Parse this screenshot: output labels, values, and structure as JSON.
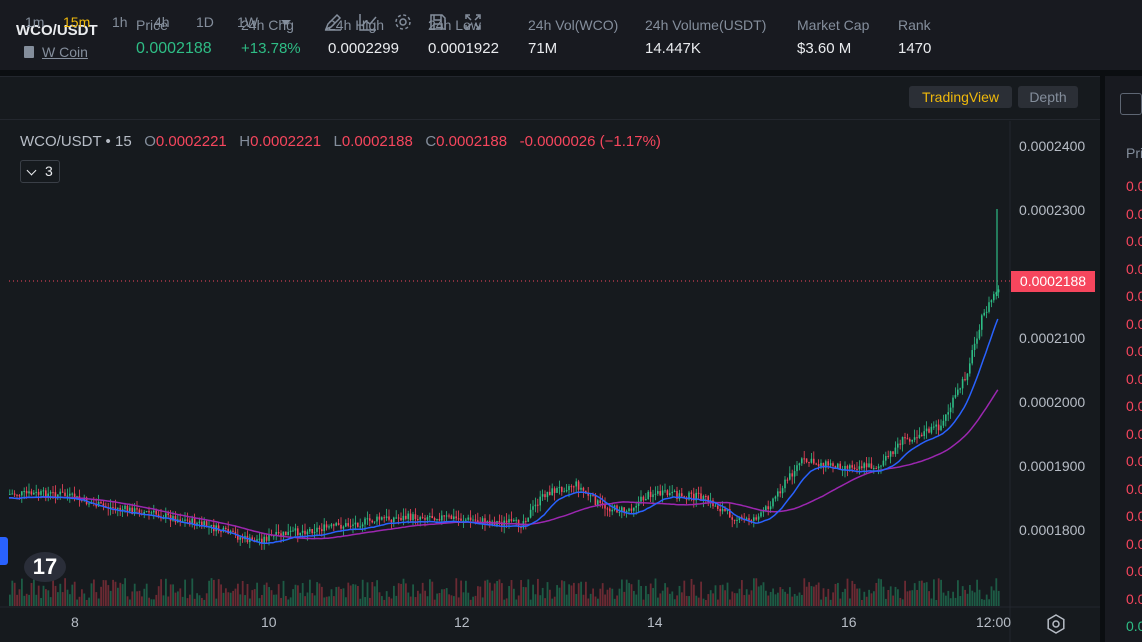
{
  "header": {
    "pair": "WCO/USDT",
    "coin_link": "W Coin",
    "stats": [
      {
        "label": "Price",
        "value": "0.0002188",
        "color": "green"
      },
      {
        "label": "24h Chg",
        "value": "+13.78%",
        "color": "green"
      },
      {
        "label": "24h High",
        "value": "0.0002299",
        "color": "white"
      },
      {
        "label": "24h Low",
        "value": "0.0001922",
        "color": "white"
      },
      {
        "label": "24h Vol(WCO)",
        "value": "71M",
        "color": "white"
      },
      {
        "label": "24h Volume(USDT)",
        "value": "14.447K",
        "color": "white"
      },
      {
        "label": "Market Cap",
        "value": "$3.60 M",
        "color": "white"
      },
      {
        "label": "Rank",
        "value": "1470",
        "color": "white"
      }
    ]
  },
  "toolbar": {
    "timeframes": [
      "1m",
      "15m",
      "1h",
      "4h",
      "1D",
      "1W"
    ],
    "active_timeframe": "15m",
    "tradingview_label": "TradingView",
    "depth_label": "Depth",
    "icons": [
      "chevron-down-icon",
      "draw-pen-icon",
      "line-chart-icon",
      "settings-gear-icon",
      "save-icon",
      "fullscreen-icon"
    ]
  },
  "legend": {
    "symbol": "WCO/USDT • 15",
    "o_key": "O",
    "o_val": "0.0002221",
    "h_key": "H",
    "h_val": "0.0002221",
    "l_key": "L",
    "l_val": "0.0002188",
    "c_key": "C",
    "c_val": "0.0002188",
    "change": "-0.0000026 (−1.17%)",
    "indicator_count": "3"
  },
  "price_axis": {
    "labels": [
      "0.0002400",
      "0.0002300",
      "0.0002100",
      "0.0002000",
      "0.0001900",
      "0.0001800"
    ],
    "current_price_tag": "0.0002188"
  },
  "time_axis": {
    "labels": [
      "8",
      "10",
      "12",
      "14",
      "16",
      "12:00"
    ]
  },
  "right_panel": {
    "header": "Pri",
    "rows": [
      {
        "text": "0.0",
        "color": "#f6465d"
      },
      {
        "text": "0.0",
        "color": "#f6465d"
      },
      {
        "text": "0.0",
        "color": "#f6465d"
      },
      {
        "text": "0.0",
        "color": "#f6465d"
      },
      {
        "text": "0.0",
        "color": "#f6465d"
      },
      {
        "text": "0.0",
        "color": "#f6465d"
      },
      {
        "text": "0.0",
        "color": "#f6465d"
      },
      {
        "text": "0.0",
        "color": "#f6465d"
      },
      {
        "text": "0.0",
        "color": "#f6465d"
      },
      {
        "text": "0.0",
        "color": "#f6465d"
      },
      {
        "text": "0.0",
        "color": "#f6465d"
      },
      {
        "text": "0.0",
        "color": "#f6465d"
      },
      {
        "text": "0.0",
        "color": "#f6465d"
      },
      {
        "text": "0.0",
        "color": "#f6465d"
      },
      {
        "text": "0.0",
        "color": "#f6465d"
      },
      {
        "text": "0.0",
        "color": "#f6465d"
      },
      {
        "text": "0.0",
        "color": "#2ebd85"
      }
    ]
  },
  "tradingview_logo": "17",
  "colors": {
    "up": "#2ebd85",
    "down": "#f6465d",
    "accent": "#f0b90b",
    "ma_fast": "#2962ff",
    "ma_slow": "#9c27b0"
  }
}
